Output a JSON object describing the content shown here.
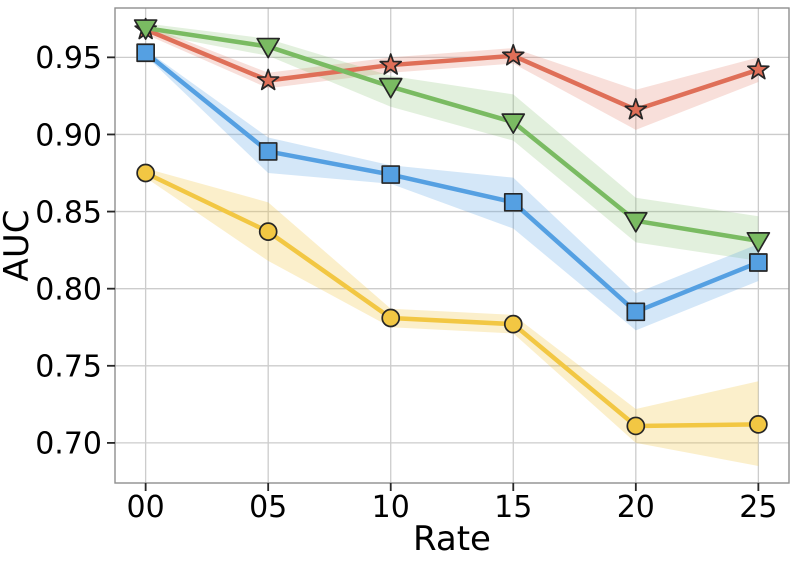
{
  "chart_data": {
    "type": "line",
    "title": "",
    "xlabel": "Rate",
    "ylabel": "AUC",
    "x": [
      0,
      5,
      10,
      15,
      20,
      25
    ],
    "x_tick_labels": [
      "00",
      "05",
      "10",
      "15",
      "20",
      "25"
    ],
    "y_ticks": [
      0.7,
      0.75,
      0.8,
      0.85,
      0.9,
      0.95
    ],
    "y_tick_labels": [
      "0.70",
      "0.75",
      "0.80",
      "0.85",
      "0.90",
      "0.95"
    ],
    "xlim": [
      -1.25,
      26.25
    ],
    "ylim": [
      0.674,
      0.982
    ],
    "grid": true,
    "legend_position": "none",
    "series": [
      {
        "name": "red-star-series",
        "marker": "star",
        "line_color": "#DF6F58",
        "band_color": "#DF6F58",
        "band_opacity": 0.22,
        "values": [
          0.968,
          0.935,
          0.945,
          0.951,
          0.916,
          0.942
        ],
        "band_lower": [
          0.965,
          0.93,
          0.94,
          0.946,
          0.903,
          0.934
        ],
        "band_upper": [
          0.971,
          0.94,
          0.95,
          0.956,
          0.929,
          0.95
        ]
      },
      {
        "name": "green-triangle-series",
        "marker": "triangle-down",
        "line_color": "#7ABB62",
        "band_color": "#7ABB62",
        "band_opacity": 0.22,
        "values": [
          0.969,
          0.957,
          0.931,
          0.908,
          0.844,
          0.831
        ],
        "band_lower": [
          0.966,
          0.951,
          0.918,
          0.896,
          0.83,
          0.818
        ],
        "band_upper": [
          0.972,
          0.962,
          0.938,
          0.926,
          0.859,
          0.847
        ]
      },
      {
        "name": "blue-square-series",
        "marker": "square",
        "line_color": "#55A0E2",
        "band_color": "#55A0E2",
        "band_opacity": 0.25,
        "values": [
          0.953,
          0.889,
          0.874,
          0.856,
          0.785,
          0.817
        ],
        "band_lower": [
          0.951,
          0.875,
          0.868,
          0.839,
          0.773,
          0.805
        ],
        "band_upper": [
          0.955,
          0.898,
          0.88,
          0.872,
          0.797,
          0.829
        ]
      },
      {
        "name": "yellow-circle-series",
        "marker": "circle",
        "line_color": "#F2C743",
        "band_color": "#F2C743",
        "band_opacity": 0.28,
        "values": [
          0.875,
          0.837,
          0.781,
          0.777,
          0.711,
          0.712
        ],
        "band_lower": [
          0.872,
          0.818,
          0.775,
          0.771,
          0.7,
          0.685
        ],
        "band_upper": [
          0.878,
          0.856,
          0.787,
          0.783,
          0.722,
          0.74
        ]
      }
    ],
    "colors": {
      "background": "#ffffff",
      "grid": "#cccccc",
      "spine": "#8f8f8f",
      "tick_mark": "#262626",
      "marker_edge": "#262626",
      "text": "#000000"
    }
  }
}
